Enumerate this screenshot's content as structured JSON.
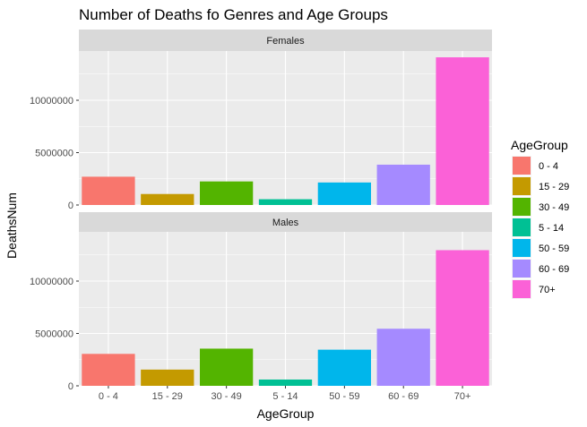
{
  "chart_data": {
    "type": "bar",
    "title": "Number of Deaths fo Genres and Age Groups",
    "xlabel": "AgeGroup",
    "ylabel": "DeathsNum",
    "categories": [
      "0 - 4",
      "15 - 29",
      "30 - 49",
      "5 - 14",
      "50 - 59",
      "60 - 69",
      "70+"
    ],
    "colors": [
      "#F8766D",
      "#C49A00",
      "#53B400",
      "#00C094",
      "#00B6EB",
      "#A58AFF",
      "#FB61D7"
    ],
    "ylim": [
      0,
      14700000
    ],
    "yticks": [
      0,
      5000000,
      10000000
    ],
    "ytick_labels": [
      "0",
      "5000000",
      "10000000"
    ],
    "grid": true,
    "legend": {
      "title": "AgeGroup",
      "position": "right",
      "entries": [
        "0 - 4",
        "15 - 29",
        "30 - 49",
        "5 - 14",
        "50 - 59",
        "60 - 69",
        "70+"
      ]
    },
    "panels": [
      {
        "name": "Females",
        "values": [
          2700000,
          1050000,
          2250000,
          550000,
          2150000,
          3850000,
          14100000
        ]
      },
      {
        "name": "Males",
        "values": [
          3050000,
          1550000,
          3550000,
          600000,
          3450000,
          5450000,
          12950000
        ]
      }
    ]
  }
}
